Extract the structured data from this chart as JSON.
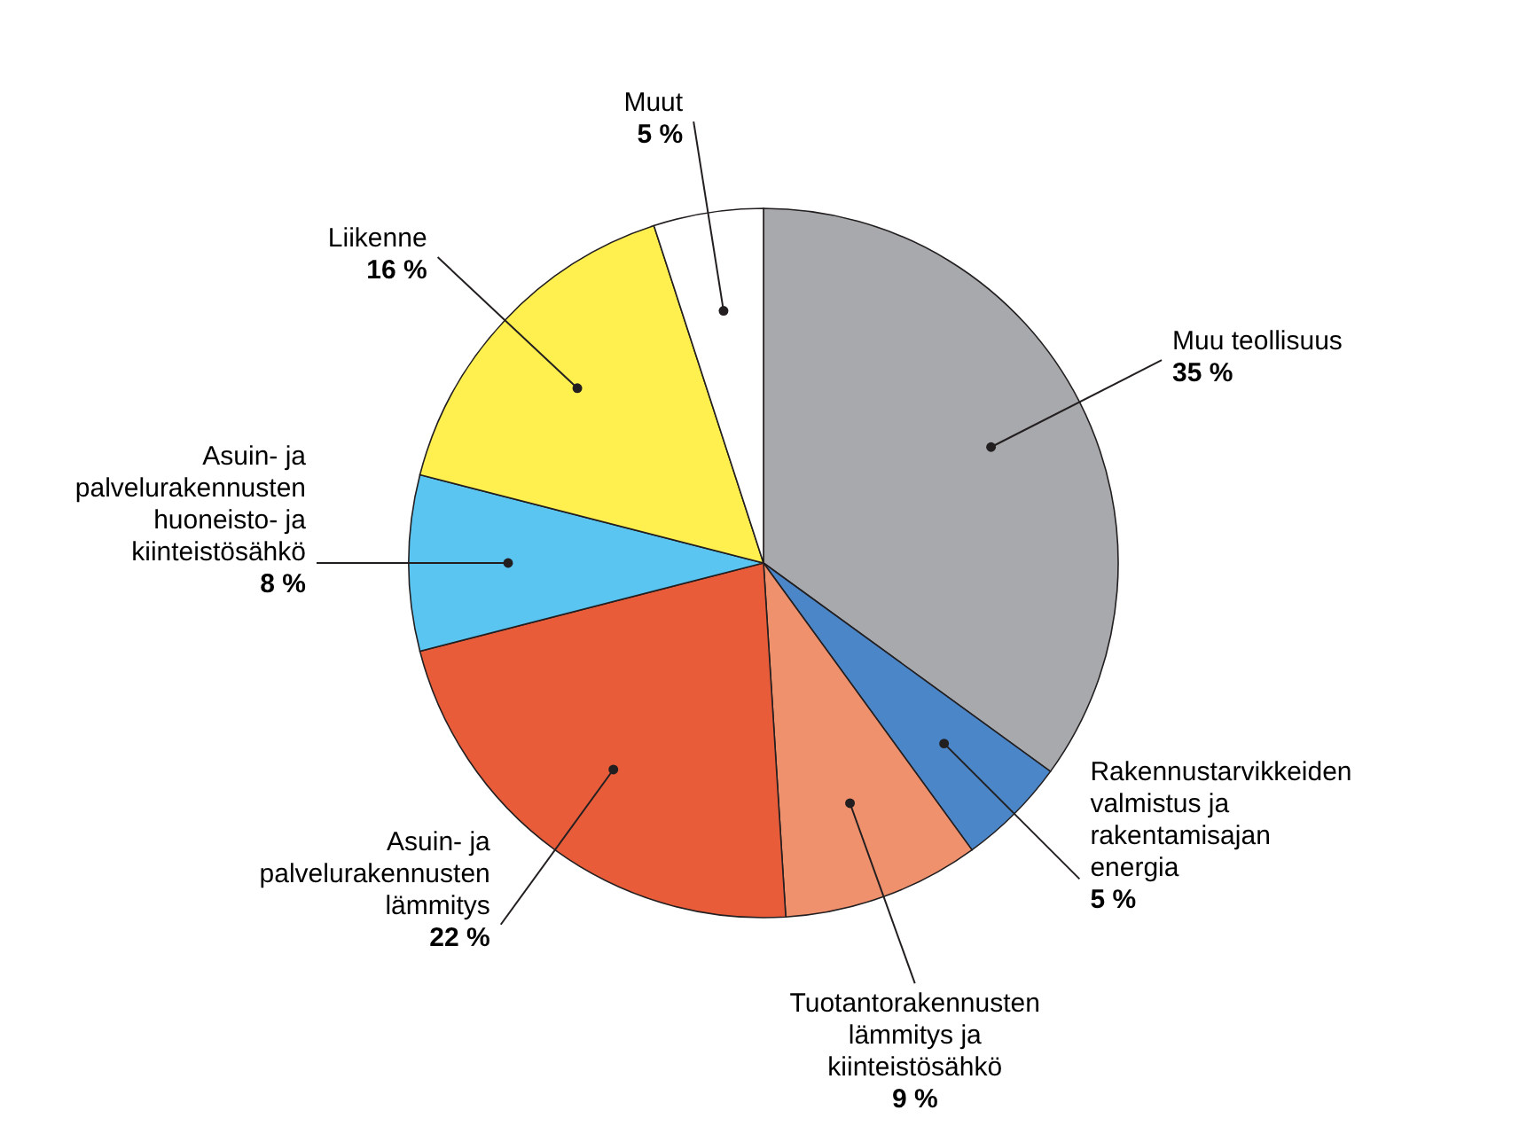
{
  "chart_data": {
    "type": "pie",
    "categories": [
      "Muu teollisuus",
      "Rakennustarvikkeiden valmistus ja rakentamisajan energia",
      "Tuotantorakennusten lämmitys ja kiinteistösähkö",
      "Asuin- ja palvelurakennusten lämmitys",
      "Asuin- ja palvelurakennusten huoneisto- ja kiinteistösähkö",
      "Liikenne",
      "Muut"
    ],
    "values": [
      35,
      5,
      9,
      22,
      8,
      16,
      5
    ],
    "value_labels": [
      "35 %",
      "5 %",
      "9 %",
      "22 %",
      "8 %",
      "16 %",
      "5 %"
    ],
    "colors": [
      "#a7a9ac",
      "#4a86c8",
      "#f0916e",
      "#e85c3a",
      "#5bc5f2",
      "#fff04f",
      "#ffffff"
    ]
  }
}
